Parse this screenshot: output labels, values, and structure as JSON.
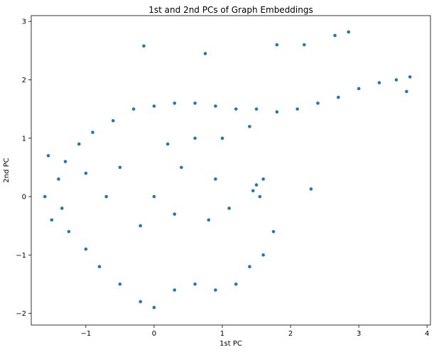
{
  "chart_data": {
    "type": "scatter",
    "title": "1st and 2nd PCs of Graph Embeddings",
    "xlabel": "1st PC",
    "ylabel": "2nd PC",
    "xlim": [
      -1.8,
      4.05
    ],
    "ylim": [
      -2.2,
      3.1
    ],
    "x_ticks": [
      -1,
      0,
      1,
      2,
      3,
      4
    ],
    "y_ticks": [
      -2,
      -1,
      0,
      1,
      2,
      3
    ],
    "x_tick_labels": [
      "−1",
      "0",
      "1",
      "2",
      "3",
      "4"
    ],
    "y_tick_labels": [
      "−2",
      "−1",
      "0",
      "1",
      "2",
      "3"
    ],
    "grid": false,
    "marker_color": "#1f77b4",
    "series": [
      {
        "points": [
          [
            -1.4,
            0.3
          ],
          [
            -1.3,
            0.6
          ],
          [
            -1.35,
            -0.2
          ],
          [
            -1.25,
            -0.6
          ],
          [
            -1.1,
            0.9
          ],
          [
            -0.9,
            1.1
          ],
          [
            -0.6,
            1.3
          ],
          [
            -0.3,
            1.5
          ],
          [
            0.0,
            1.55
          ],
          [
            0.3,
            1.6
          ],
          [
            0.6,
            1.6
          ],
          [
            0.9,
            1.55
          ],
          [
            1.2,
            1.5
          ],
          [
            1.5,
            1.5
          ],
          [
            1.8,
            1.45
          ],
          [
            2.1,
            1.5
          ],
          [
            2.4,
            1.6
          ],
          [
            2.7,
            1.7
          ],
          [
            3.0,
            1.85
          ],
          [
            3.3,
            1.95
          ],
          [
            3.55,
            2.0
          ],
          [
            3.7,
            1.8
          ],
          [
            3.75,
            2.05
          ],
          [
            2.85,
            2.82
          ],
          [
            2.65,
            2.76
          ],
          [
            2.2,
            2.6
          ],
          [
            1.8,
            2.6
          ],
          [
            0.75,
            2.45
          ],
          [
            -0.15,
            2.58
          ],
          [
            0.0,
            0.0
          ],
          [
            -0.5,
            0.5
          ],
          [
            0.2,
            0.9
          ],
          [
            0.6,
            1.0
          ],
          [
            1.0,
            1.0
          ],
          [
            1.4,
            1.2
          ],
          [
            1.5,
            0.2
          ],
          [
            1.6,
            0.3
          ],
          [
            1.45,
            0.1
          ],
          [
            1.55,
            0.0
          ],
          [
            2.3,
            0.13
          ],
          [
            -0.2,
            -1.8
          ],
          [
            0.0,
            -1.9
          ],
          [
            0.3,
            -1.6
          ],
          [
            0.6,
            -1.5
          ],
          [
            0.9,
            -1.6
          ],
          [
            1.2,
            -1.5
          ],
          [
            1.4,
            -1.2
          ],
          [
            1.6,
            -1.0
          ],
          [
            1.75,
            -0.6
          ],
          [
            -1.5,
            -0.4
          ],
          [
            -1.55,
            0.7
          ],
          [
            -1.6,
            0.0
          ],
          [
            -0.8,
            -1.2
          ],
          [
            -0.5,
            -1.5
          ],
          [
            -1.0,
            -0.9
          ],
          [
            -0.2,
            -0.5
          ],
          [
            0.3,
            -0.3
          ],
          [
            0.8,
            -0.4
          ],
          [
            1.1,
            -0.2
          ],
          [
            0.9,
            0.3
          ],
          [
            0.4,
            0.5
          ],
          [
            -0.7,
            0.0
          ],
          [
            -1.0,
            0.4
          ]
        ]
      }
    ]
  }
}
